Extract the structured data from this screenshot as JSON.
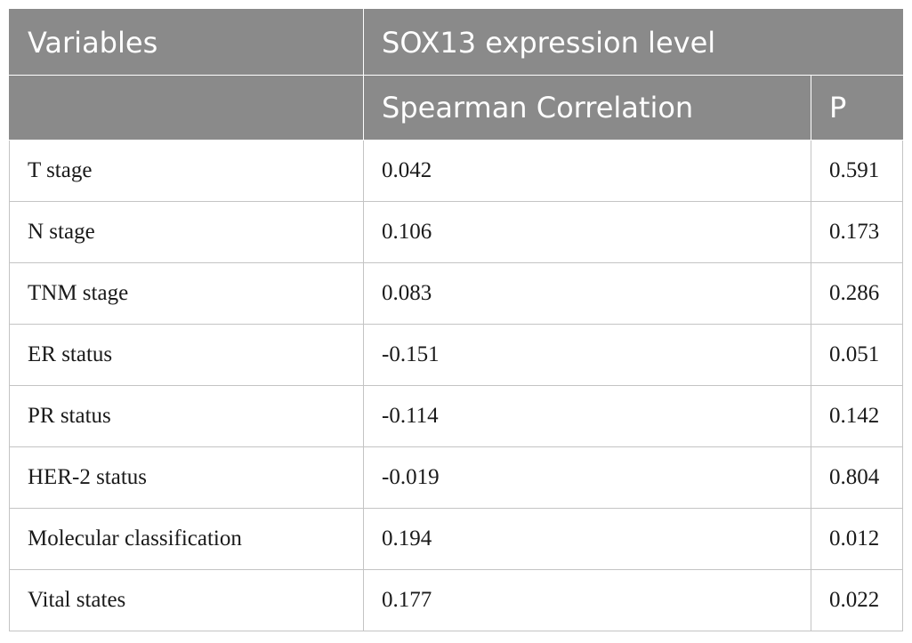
{
  "table": {
    "header_row1": {
      "variables": "Variables",
      "group": "SOX13 expression level"
    },
    "header_row2": {
      "spearman": "Spearman Correlation",
      "p": "P"
    },
    "rows": [
      {
        "variable": "T stage",
        "spearman": "0.042",
        "p": "0.591"
      },
      {
        "variable": "N stage",
        "spearman": "0.106",
        "p": "0.173"
      },
      {
        "variable": "TNM stage",
        "spearman": "0.083",
        "p": "0.286"
      },
      {
        "variable": "ER status",
        "spearman": "-0.151",
        "p": "0.051"
      },
      {
        "variable": "PR status",
        "spearman": "-0.114",
        "p": "0.142"
      },
      {
        "variable": "HER-2 status",
        "spearman": "-0.019",
        "p": "0.804"
      },
      {
        "variable": "Molecular classification",
        "spearman": "0.194",
        "p": "0.012"
      },
      {
        "variable": "Vital states",
        "spearman": "0.177",
        "p": "0.022"
      }
    ]
  },
  "colors": {
    "header_bg": "#8a8a8a",
    "header_text": "#ffffff",
    "grid": "#c4c4c4",
    "body_text": "#1a1a1a"
  }
}
